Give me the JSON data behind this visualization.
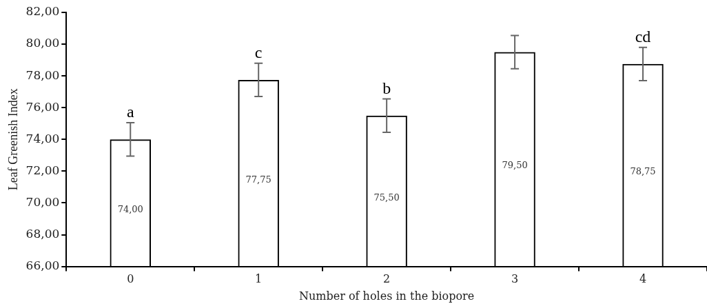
{
  "chart_data": {
    "type": "bar",
    "xlabel": "Number of holes in the biopore",
    "ylabel": "Leaf Greenish Index",
    "categories": [
      "0",
      "1",
      "2",
      "3",
      "4"
    ],
    "values": [
      74.0,
      77.75,
      75.5,
      79.5,
      78.75
    ],
    "errors": [
      1.05,
      1.05,
      1.05,
      1.05,
      1.05
    ],
    "value_labels": [
      "74,00",
      "77,75",
      "75,50",
      "79,50",
      "78,75"
    ],
    "color": "#000000",
    "ylim": [
      66,
      82
    ],
    "yticks": [
      {
        "value": 66,
        "label": "66,00"
      },
      {
        "value": 68,
        "label": "68,00"
      },
      {
        "value": 70,
        "label": "70,00"
      },
      {
        "value": 72,
        "label": "72,00"
      },
      {
        "value": 74,
        "label": "74,00"
      },
      {
        "value": 76,
        "label": "76,00"
      },
      {
        "value": 78,
        "label": "78,00"
      },
      {
        "value": 80,
        "label": "80,00"
      },
      {
        "value": 82,
        "label": "82,00"
      }
    ],
    "annotations": [
      {
        "text": "a",
        "x": "0",
        "y": 75.05
      },
      {
        "text": "c",
        "x": "1",
        "y": 78.8
      },
      {
        "text": "b",
        "x": "2",
        "y": 76.55
      },
      {
        "text": "cd",
        "x": "4",
        "y": 79.8
      }
    ],
    "grid": false,
    "legend": false
  }
}
